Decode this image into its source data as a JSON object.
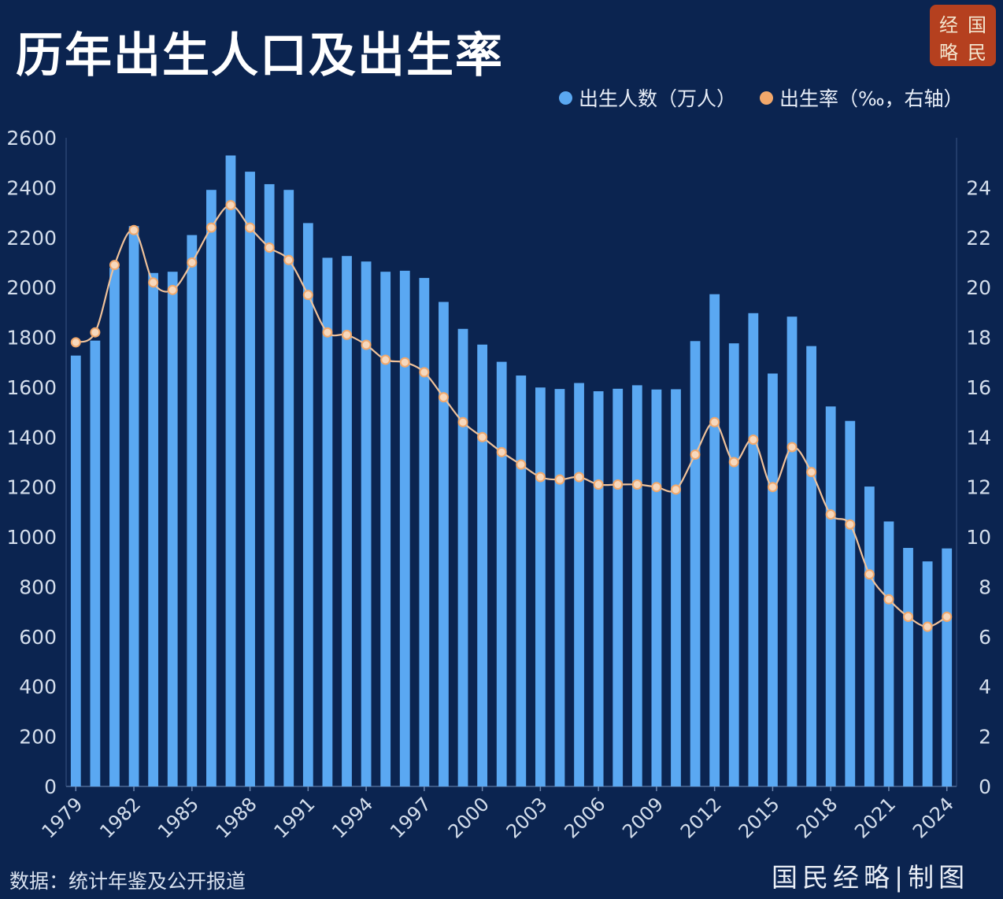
{
  "title": "历年出生人口及出生率",
  "seal": {
    "chars": [
      "经",
      "国",
      "略",
      "民"
    ],
    "color": "#b5401f"
  },
  "legend": {
    "births_label": "出生人数（万人）",
    "rate_label": "出生率（‰，右轴）"
  },
  "source": "数据：统计年鉴及公开报道",
  "credit": "国民经略|制图",
  "colors": {
    "background": "#0b2450",
    "bar": "#5aa8f2",
    "line": "#f0c29a",
    "marker": "#f2a86b",
    "axis_text": "#d4deec"
  },
  "chart_data": {
    "type": "bar",
    "x": [
      1979,
      1980,
      1981,
      1982,
      1983,
      1984,
      1985,
      1986,
      1987,
      1988,
      1989,
      1990,
      1991,
      1992,
      1993,
      1994,
      1995,
      1996,
      1997,
      1998,
      1999,
      2000,
      2001,
      2002,
      2003,
      2004,
      2005,
      2006,
      2007,
      2008,
      2009,
      2010,
      2011,
      2012,
      2013,
      2014,
      2015,
      2016,
      2017,
      2018,
      2019,
      2020,
      2021,
      2022,
      2023,
      2024
    ],
    "x_tick_labels": [
      "1979",
      "1982",
      "1985",
      "1988",
      "1991",
      "1994",
      "1997",
      "2000",
      "2003",
      "2006",
      "2009",
      "2012",
      "2015",
      "2018",
      "2021",
      "2024"
    ],
    "series": [
      {
        "name": "出生人数（万人）",
        "type": "bar",
        "axis": "left",
        "values": [
          1727,
          1787,
          2079,
          2246,
          2058,
          2063,
          2210,
          2391,
          2529,
          2464,
          2414,
          2391,
          2258,
          2119,
          2126,
          2104,
          2063,
          2067,
          2038,
          1942,
          1834,
          1771,
          1702,
          1647,
          1599,
          1593,
          1617,
          1584,
          1594,
          1608,
          1591,
          1592,
          1785,
          1973,
          1776,
          1897,
          1655,
          1883,
          1765,
          1523,
          1465,
          1202,
          1062,
          956,
          902,
          954
        ]
      },
      {
        "name": "出生率（‰，右轴）",
        "type": "line",
        "axis": "right",
        "values": [
          17.8,
          18.2,
          20.9,
          22.3,
          20.2,
          19.9,
          21.0,
          22.4,
          23.3,
          22.4,
          21.6,
          21.1,
          19.7,
          18.2,
          18.1,
          17.7,
          17.1,
          17.0,
          16.6,
          15.6,
          14.6,
          14.0,
          13.4,
          12.9,
          12.4,
          12.3,
          12.4,
          12.1,
          12.1,
          12.1,
          12.0,
          11.9,
          13.3,
          14.6,
          13.0,
          13.9,
          12.0,
          13.6,
          12.6,
          10.9,
          10.5,
          8.5,
          7.5,
          6.8,
          6.4,
          6.8
        ]
      }
    ],
    "y_left": {
      "min": 0,
      "max": 2600,
      "ticks": [
        0,
        200,
        400,
        600,
        800,
        1000,
        1200,
        1400,
        1600,
        1800,
        2000,
        2200,
        2400,
        2600
      ]
    },
    "y_right": {
      "min": 0,
      "max": 26,
      "ticks": [
        0,
        2,
        4,
        6,
        8,
        10,
        12,
        14,
        16,
        18,
        20,
        22,
        24
      ]
    },
    "legend_position": "top-right",
    "grid": false
  }
}
